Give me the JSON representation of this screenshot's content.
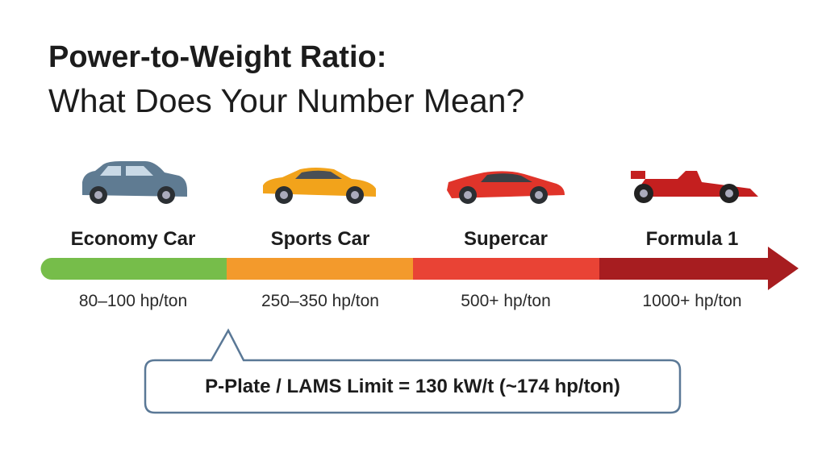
{
  "header": {
    "title": "Power-to-Weight Ratio:",
    "subtitle": "What Does Your Number Mean?"
  },
  "categories": [
    {
      "label": "Economy Car",
      "range": "80–100 hp/ton"
    },
    {
      "label": "Sports Car",
      "range": "250–350 hp/ton"
    },
    {
      "label": "Supercar",
      "range": "500+ hp/ton"
    },
    {
      "label": "Formula 1",
      "range": "1000+ hp/ton"
    }
  ],
  "callout": {
    "text": "P-Plate / LAMS Limit = 130 kW/t (~174 hp/ton)"
  }
}
